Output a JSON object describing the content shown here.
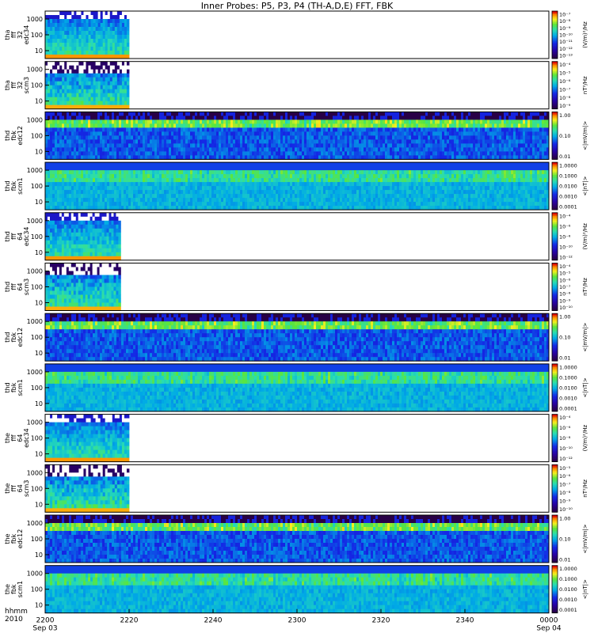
{
  "title": "Inner Probes: P5, P3, P4 (TH-A,D,E) FFT, FBK",
  "time_axis": {
    "label_line1": "hhmm",
    "label_line2": "2010",
    "ticks": [
      "2200",
      "2220",
      "2240",
      "2300",
      "2320",
      "2340",
      "0000"
    ],
    "dates": [
      "Sep 03",
      "Sep 04"
    ]
  },
  "colorbar_units": {
    "fft_e": "(V/m)²/Hz",
    "fft_b": "nT²/Hz",
    "fbk_e": "<|mV/m|>",
    "fbk_b": "<|nT|>"
  },
  "chart_data": {
    "type": "heatmap",
    "panel_count": 12,
    "x_range_hhmm": [
      "2200",
      "0000"
    ],
    "y_scale": "log",
    "panels": [
      {
        "name": "tha fff 32 edc34",
        "label_lines": [
          "tha",
          "fff",
          "32",
          "edc34"
        ],
        "units_key": "fft_e",
        "y_ticks": [
          "1000",
          "100",
          "10"
        ],
        "cbar_ticks": [
          "10⁻⁷",
          "10⁻⁸",
          "10⁻⁹",
          "10⁻¹⁰",
          "10⁻¹¹",
          "10⁻¹²",
          "10⁻¹³"
        ],
        "data_end_hhmm": "2220",
        "style": "fft_e"
      },
      {
        "name": "tha fff 32 scm3",
        "label_lines": [
          "tha",
          "fff",
          "32",
          "scm3"
        ],
        "units_key": "fft_b",
        "y_ticks": [
          "1000",
          "100",
          "10"
        ],
        "cbar_ticks": [
          "10⁻⁴",
          "10⁻⁵",
          "10⁻⁶",
          "10⁻⁷",
          "10⁻⁸",
          "10⁻⁹"
        ],
        "data_end_hhmm": "2220",
        "style": "fft_b"
      },
      {
        "name": "thd fbk edc12",
        "label_lines": [
          "thd",
          "fbk",
          "edc12"
        ],
        "units_key": "fbk_e",
        "y_ticks": [
          "1000",
          "100",
          "10"
        ],
        "cbar_ticks": [
          "1.00",
          "0.10",
          "0.01"
        ],
        "data_end_hhmm": "0000",
        "style": "fbk_e"
      },
      {
        "name": "thd fbk scm1",
        "label_lines": [
          "thd",
          "fbk",
          "scm1"
        ],
        "units_key": "fbk_b",
        "y_ticks": [
          "1000",
          "100",
          "10"
        ],
        "cbar_ticks": [
          "1.0000",
          "0.1000",
          "0.0100",
          "0.0010",
          "0.0001"
        ],
        "data_end_hhmm": "0000",
        "style": "fbk_b"
      },
      {
        "name": "thd fff 64 edc34",
        "label_lines": [
          "thd",
          "fff",
          "64",
          "edc34"
        ],
        "units_key": "fft_e",
        "y_ticks": [
          "1000",
          "100",
          "10"
        ],
        "cbar_ticks": [
          "10⁻⁴",
          "10⁻⁶",
          "10⁻⁸",
          "10⁻¹⁰",
          "10⁻¹²"
        ],
        "data_end_hhmm": "2218",
        "style": "fft_e"
      },
      {
        "name": "thd fff 64 scm3",
        "label_lines": [
          "thd",
          "fff",
          "64",
          "scm3"
        ],
        "units_key": "fft_b",
        "y_ticks": [
          "1000",
          "100",
          "10"
        ],
        "cbar_ticks": [
          "10⁻⁴",
          "10⁻⁵",
          "10⁻⁶",
          "10⁻⁷",
          "10⁻⁸",
          "10⁻⁹",
          "10⁻¹⁰"
        ],
        "data_end_hhmm": "2218",
        "style": "fft_b"
      },
      {
        "name": "thd fbk edc12",
        "label_lines": [
          "thd",
          "fbk",
          "edc12"
        ],
        "units_key": "fbk_e",
        "y_ticks": [
          "1000",
          "100",
          "10"
        ],
        "cbar_ticks": [
          "1.00",
          "0.10",
          "0.01"
        ],
        "data_end_hhmm": "0000",
        "style": "fbk_e"
      },
      {
        "name": "thd fbk scm1",
        "label_lines": [
          "thd",
          "fbk",
          "scm1"
        ],
        "units_key": "fbk_b",
        "y_ticks": [
          "1000",
          "100",
          "10"
        ],
        "cbar_ticks": [
          "1.0000",
          "0.1000",
          "0.0100",
          "0.0010",
          "0.0001"
        ],
        "data_end_hhmm": "0000",
        "style": "fbk_b"
      },
      {
        "name": "the fff 64 edc34",
        "label_lines": [
          "the",
          "fff",
          "64",
          "edc34"
        ],
        "units_key": "fft_e",
        "y_ticks": [
          "1000",
          "100",
          "10"
        ],
        "cbar_ticks": [
          "10⁻⁴",
          "10⁻⁶",
          "10⁻⁸",
          "10⁻¹⁰",
          "10⁻¹²"
        ],
        "data_end_hhmm": "2220",
        "style": "fft_e"
      },
      {
        "name": "the fff 64 scm3",
        "label_lines": [
          "the",
          "fff",
          "64",
          "scm3"
        ],
        "units_key": "fft_b",
        "y_ticks": [
          "1000",
          "100",
          "10"
        ],
        "cbar_ticks": [
          "10⁻⁵",
          "10⁻⁶",
          "10⁻⁷",
          "10⁻⁸",
          "10⁻⁹",
          "10⁻¹⁰"
        ],
        "data_end_hhmm": "2220",
        "style": "fft_b"
      },
      {
        "name": "the fbk edc12",
        "label_lines": [
          "the",
          "fbk",
          "edc12"
        ],
        "units_key": "fbk_e",
        "y_ticks": [
          "1000",
          "100",
          "10"
        ],
        "cbar_ticks": [
          "1.00",
          "0.10",
          "0.01"
        ],
        "data_end_hhmm": "0000",
        "style": "fbk_e"
      },
      {
        "name": "the fbk scm1",
        "label_lines": [
          "the",
          "fbk",
          "scm1"
        ],
        "units_key": "fbk_b",
        "y_ticks": [
          "1000",
          "100",
          "10"
        ],
        "cbar_ticks": [
          "1.0000",
          "0.1000",
          "0.0100",
          "0.0010",
          "0.0001"
        ],
        "data_end_hhmm": "0000",
        "style": "fbk_b"
      }
    ]
  }
}
